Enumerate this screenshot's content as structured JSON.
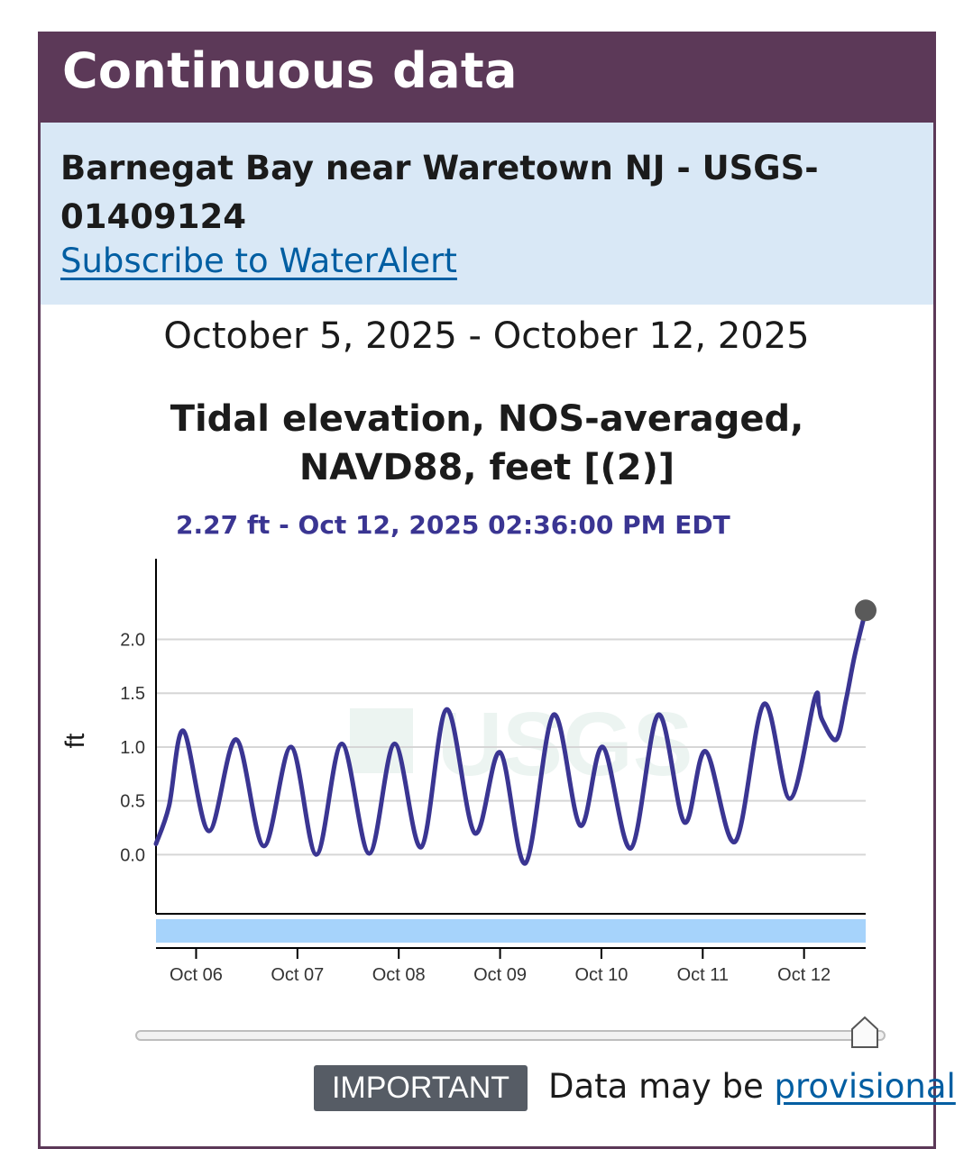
{
  "panel": {
    "title": "Continuous data",
    "site_name": "Barnegat Bay near Waretown NJ - USGS-01409124",
    "subscribe_link": "Subscribe to WaterAlert"
  },
  "chart_header": {
    "date_range": "October 5, 2025 - October 12, 2025",
    "title": "Tidal elevation, NOS-averaged, NAVD88, feet [(2)]",
    "tooltip": "2.27 ft - Oct 12, 2025 02:36:00 PM EDT"
  },
  "footer": {
    "badge": "IMPORTANT",
    "notice": "Data may be ",
    "link": "provisional"
  },
  "colors": {
    "header_bg": "#5c3958",
    "site_bg": "#d9e8f6",
    "series": "#3a3592",
    "band": "#a6d3fb",
    "link": "#005ea2"
  },
  "chart_data": {
    "type": "line",
    "title": "Tidal elevation, NOS-averaged, NAVD88, feet [(2)]",
    "subtitle": "October 5, 2025 - October 12, 2025",
    "xlabel": "",
    "ylabel": "ft",
    "xlim": [
      "2025-10-05T14:30",
      "2025-10-12T14:36"
    ],
    "ylim": [
      -0.55,
      2.75
    ],
    "y_ticks": [
      0.0,
      0.5,
      1.0,
      1.5,
      2.0
    ],
    "y_tick_labels": [
      "0.0",
      "0.5",
      "1.0",
      "1.5",
      "2.0"
    ],
    "x_ticks": [
      "2025-10-06T00:00",
      "2025-10-07T00:00",
      "2025-10-08T00:00",
      "2025-10-09T00:00",
      "2025-10-10T00:00",
      "2025-10-11T00:00",
      "2025-10-12T00:00"
    ],
    "x_tick_labels": [
      "Oct 06",
      "Oct 07",
      "Oct 08",
      "Oct 09",
      "Oct 10",
      "Oct 11",
      "Oct 12"
    ],
    "grid": true,
    "series": [
      {
        "name": "",
        "points": [
          [
            "2025-10-05T14:30",
            0.1
          ],
          [
            "2025-10-05T17:35",
            0.45
          ],
          [
            "2025-10-05T21:00",
            1.15
          ],
          [
            "2025-10-06T03:00",
            0.22
          ],
          [
            "2025-10-06T09:30",
            1.07
          ],
          [
            "2025-10-06T16:00",
            0.08
          ],
          [
            "2025-10-06T22:30",
            1.0
          ],
          [
            "2025-10-07T04:30",
            0.0
          ],
          [
            "2025-10-07T10:30",
            1.03
          ],
          [
            "2025-10-07T17:00",
            0.01
          ],
          [
            "2025-10-07T23:00",
            1.03
          ],
          [
            "2025-10-08T05:20",
            0.07
          ],
          [
            "2025-10-08T11:20",
            1.35
          ],
          [
            "2025-10-08T18:00",
            0.2
          ],
          [
            "2025-10-09T00:00",
            0.95
          ],
          [
            "2025-10-09T06:00",
            -0.08
          ],
          [
            "2025-10-09T12:40",
            1.3
          ],
          [
            "2025-10-09T19:00",
            0.27
          ],
          [
            "2025-10-10T00:20",
            1.0
          ],
          [
            "2025-10-10T07:00",
            0.06
          ],
          [
            "2025-10-10T13:30",
            1.3
          ],
          [
            "2025-10-10T19:40",
            0.3
          ],
          [
            "2025-10-11T00:40",
            0.96
          ],
          [
            "2025-10-11T07:40",
            0.12
          ],
          [
            "2025-10-11T14:30",
            1.4
          ],
          [
            "2025-10-11T20:40",
            0.52
          ],
          [
            "2025-10-12T02:30",
            1.45
          ],
          [
            "2025-10-12T03:30",
            1.38
          ],
          [
            "2025-10-12T04:20",
            1.25
          ],
          [
            "2025-10-12T07:40",
            1.07
          ],
          [
            "2025-10-12T10:00",
            1.45
          ],
          [
            "2025-10-12T12:00",
            1.85
          ],
          [
            "2025-10-12T14:36",
            2.27
          ]
        ]
      }
    ],
    "highlight": {
      "x": "2025-10-12T14:36",
      "y": 2.27,
      "label": "2.27 ft - Oct 12, 2025 02:36:00 PM EDT"
    },
    "watermark": "USGS"
  }
}
